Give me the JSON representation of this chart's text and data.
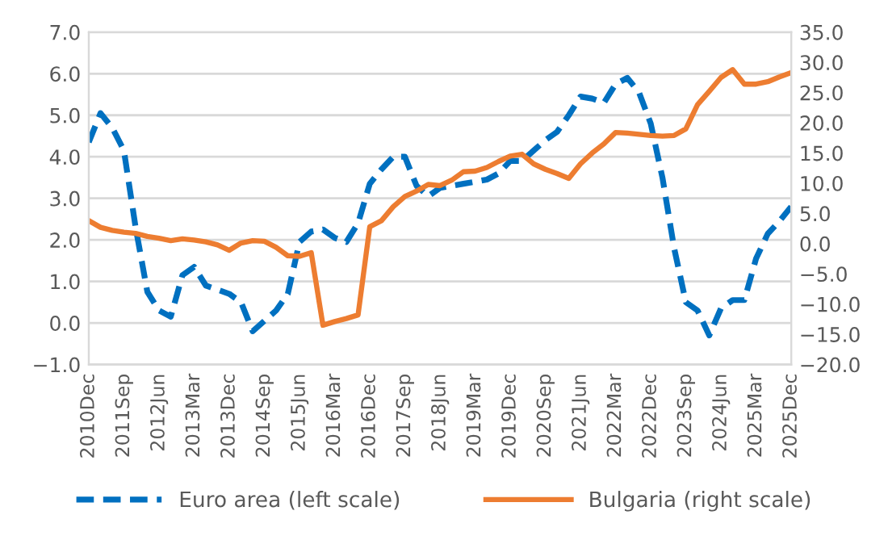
{
  "chart_data": {
    "type": "line",
    "categories": [
      "2010Dec",
      null,
      null,
      "2011Sep",
      null,
      null,
      "2012Jun",
      null,
      null,
      "2013Mar",
      null,
      null,
      "2013Dec",
      null,
      null,
      "2014Sep",
      null,
      null,
      "2015Jun",
      null,
      null,
      "2016Mar",
      null,
      null,
      "2016Dec",
      null,
      null,
      "2017Sep",
      null,
      null,
      "2018Jun",
      null,
      null,
      "2019Mar",
      null,
      null,
      "2019Dec",
      null,
      null,
      "2020Sep",
      null,
      null,
      "2021Jun",
      null,
      null,
      "2022Mar",
      null,
      null,
      "2022Dec",
      null,
      null,
      "2023Sep",
      null,
      null,
      "2024Jun",
      null,
      null,
      "2025Mar",
      null,
      null,
      "2025Dec"
    ],
    "series": [
      {
        "name": "Euro area (left scale)",
        "color": "#0070c0",
        "line_style": "dashed",
        "values": [
          4.35,
          5.05,
          4.7,
          4.15,
          2.3,
          0.75,
          0.3,
          0.15,
          1.15,
          1.35,
          0.9,
          0.8,
          0.7,
          0.5,
          -0.2,
          0.05,
          0.3,
          0.7,
          1.95,
          2.2,
          2.25,
          2.05,
          1.95,
          2.4,
          3.35,
          3.7,
          4.0,
          4.0,
          3.3,
          3.05,
          3.25,
          3.3,
          3.35,
          3.4,
          3.45,
          3.6,
          3.9,
          3.9,
          4.15,
          4.4,
          4.6,
          5.0,
          5.45,
          5.4,
          5.3,
          5.75,
          5.9,
          5.55,
          4.8,
          3.5,
          1.8,
          0.5,
          0.3,
          -0.3,
          0.35,
          0.55,
          0.55,
          1.55,
          2.15,
          2.45,
          2.8
        ]
      },
      {
        "name": "Bulgaria (right scale)",
        "color": "#ed7d31",
        "line_style": "solid",
        "axis": "y2",
        "values": [
          3.8,
          2.7,
          2.2,
          1.9,
          1.7,
          1.2,
          0.9,
          0.5,
          0.8,
          0.6,
          0.3,
          -0.2,
          -1.1,
          0.1,
          0.5,
          0.4,
          -0.6,
          -2.0,
          -2.1,
          -1.5,
          -13.5,
          -12.9,
          -12.4,
          -11.8,
          2.8,
          3.8,
          6.1,
          7.8,
          8.7,
          9.8,
          9.6,
          10.5,
          11.9,
          12.0,
          12.6,
          13.6,
          14.5,
          14.8,
          13.2,
          12.3,
          11.6,
          10.8,
          13.2,
          15.0,
          16.5,
          18.4,
          18.3,
          18.1,
          17.9,
          17.8,
          17.9,
          19.0,
          23.0,
          25.2,
          27.5,
          28.8,
          26.4,
          26.4,
          26.8,
          27.6,
          28.3
        ]
      }
    ],
    "ylim": [
      -1,
      7
    ],
    "yticks": [
      {
        "value": -1,
        "label": "−1.0"
      },
      {
        "value": 0,
        "label": "0.0"
      },
      {
        "value": 1,
        "label": "1.0"
      },
      {
        "value": 2,
        "label": "2.0"
      },
      {
        "value": 3,
        "label": "3.0"
      },
      {
        "value": 4,
        "label": "4.0"
      },
      {
        "value": 5,
        "label": "5.0"
      },
      {
        "value": 6,
        "label": "6.0"
      },
      {
        "value": 7,
        "label": "7.0"
      }
    ],
    "y2lim": [
      -20,
      35
    ],
    "y2ticks": [
      {
        "value": -20,
        "label": "−20.0"
      },
      {
        "value": -15,
        "label": "−15.0"
      },
      {
        "value": -10,
        "label": "−10.0"
      },
      {
        "value": -5,
        "label": "−5.0"
      },
      {
        "value": 0,
        "label": "0.0"
      },
      {
        "value": 5,
        "label": "5.0"
      },
      {
        "value": 10,
        "label": "10.0"
      },
      {
        "value": 15,
        "label": "15.0"
      },
      {
        "value": 20,
        "label": "20.0"
      },
      {
        "value": 25,
        "label": "25.0"
      },
      {
        "value": 30,
        "label": "30.0"
      },
      {
        "value": 35,
        "label": "35.0"
      }
    ],
    "grid": "y",
    "legend": "bottom",
    "marker": "none"
  }
}
